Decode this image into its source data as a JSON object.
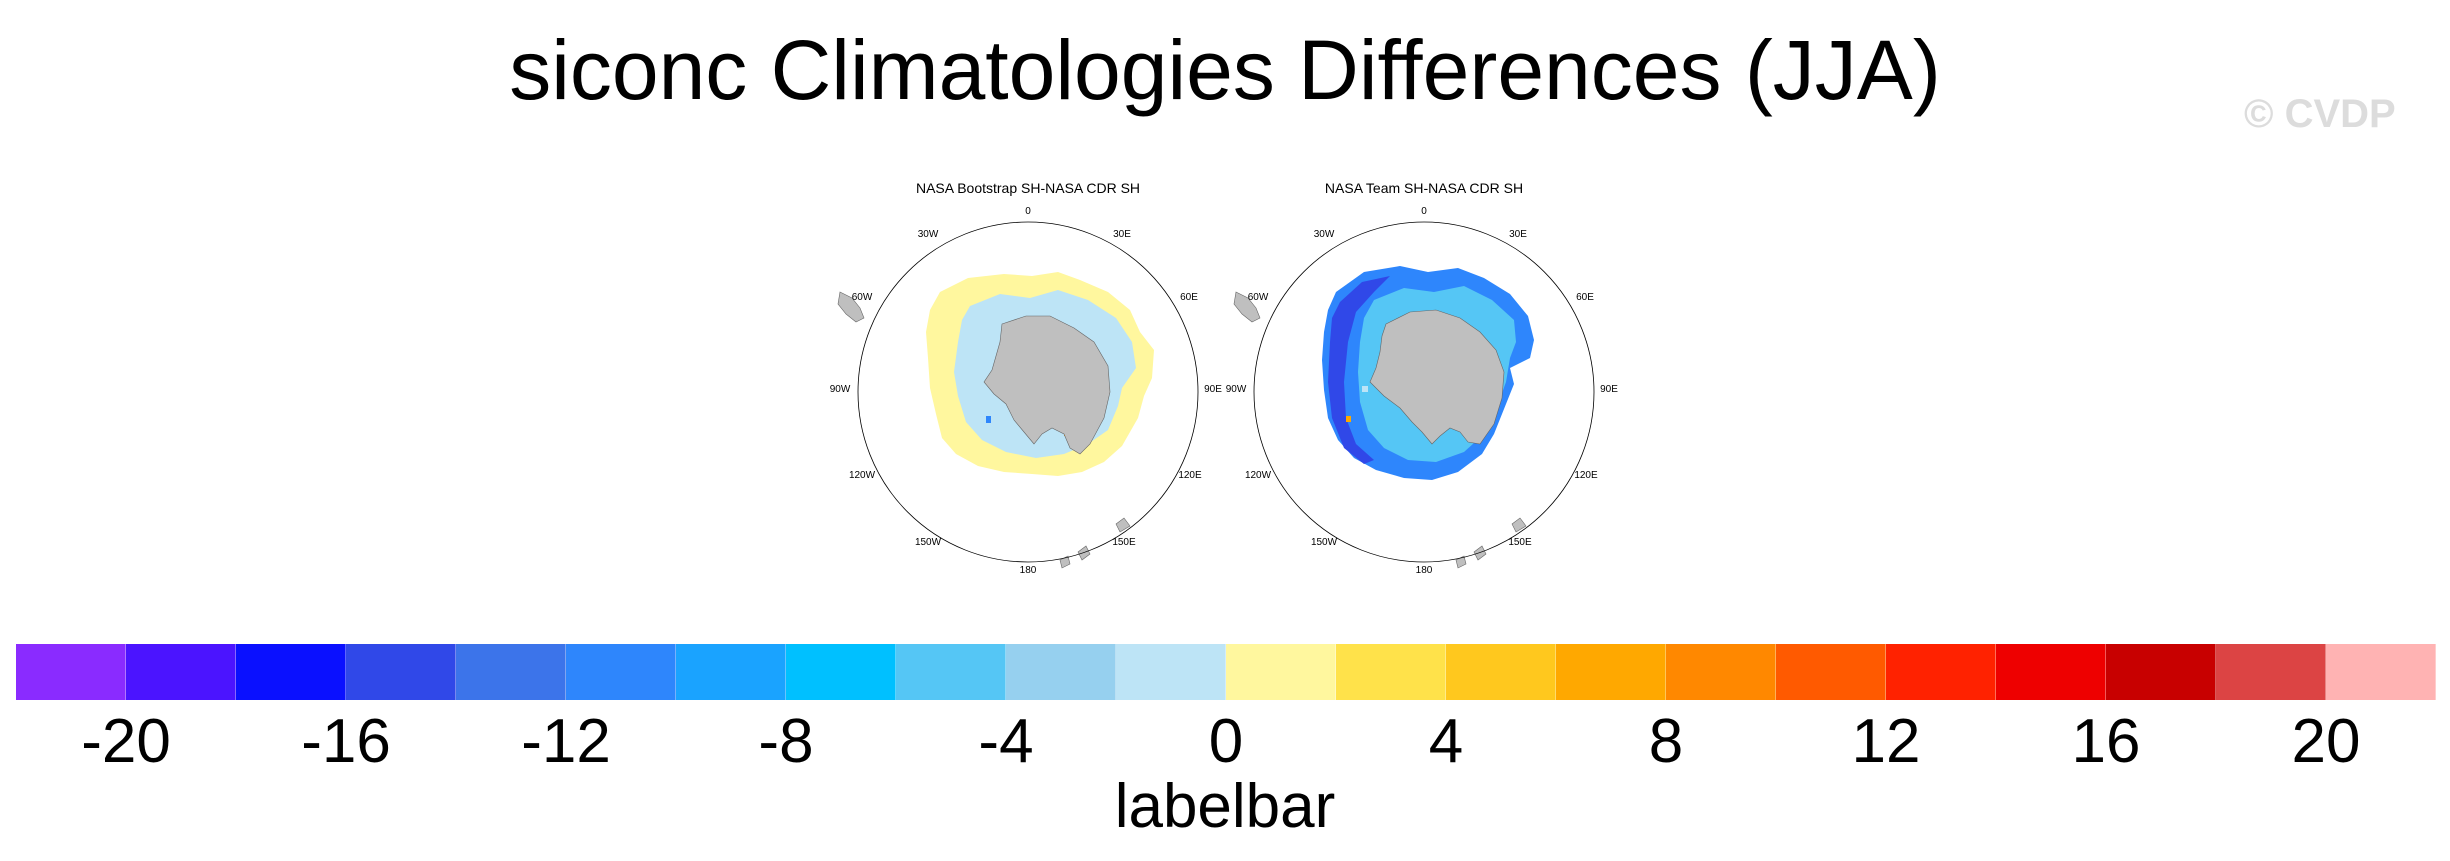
{
  "title": "siconc Climatologies Differences (JJA)",
  "watermark": "© CVDP",
  "panels": [
    {
      "title": "NASA Bootstrap SH-NASA CDR SH"
    },
    {
      "title": "NASA Team SH-NASA CDR SH"
    }
  ],
  "longitude_labels": [
    "0",
    "30E",
    "60E",
    "90E",
    "120E",
    "150E",
    "180",
    "150W",
    "120W",
    "90W",
    "60W",
    "30W"
  ],
  "colorbar": {
    "label": "labelbar",
    "tick_labels": [
      "-20",
      "-16",
      "-12",
      "-8",
      "-4",
      "0",
      "4",
      "8",
      "12",
      "16",
      "20"
    ],
    "colors": [
      "#8a2bff",
      "#4b14ff",
      "#0a10ff",
      "#3048e8",
      "#3c74ea",
      "#2e86fc",
      "#1aa3ff",
      "#00c0ff",
      "#55c6f5",
      "#96d0ef",
      "#bde4f6",
      "#fff79e",
      "#ffe24a",
      "#ffc81e",
      "#ffa800",
      "#ff8800",
      "#ff5a00",
      "#ff2200",
      "#ee0000",
      "#c80000",
      "#dc4444",
      "#ffb3b3"
    ]
  },
  "chart_data": {
    "type": "heatmap",
    "title": "siconc Climatologies Differences (JJA)",
    "projection": "south polar stereographic",
    "colorbar_range": [
      -22,
      22
    ],
    "colorbar_interval": 2,
    "panels": [
      "NASA Bootstrap SH-NASA CDR SH",
      "NASA Team SH-NASA CDR SH"
    ]
  }
}
